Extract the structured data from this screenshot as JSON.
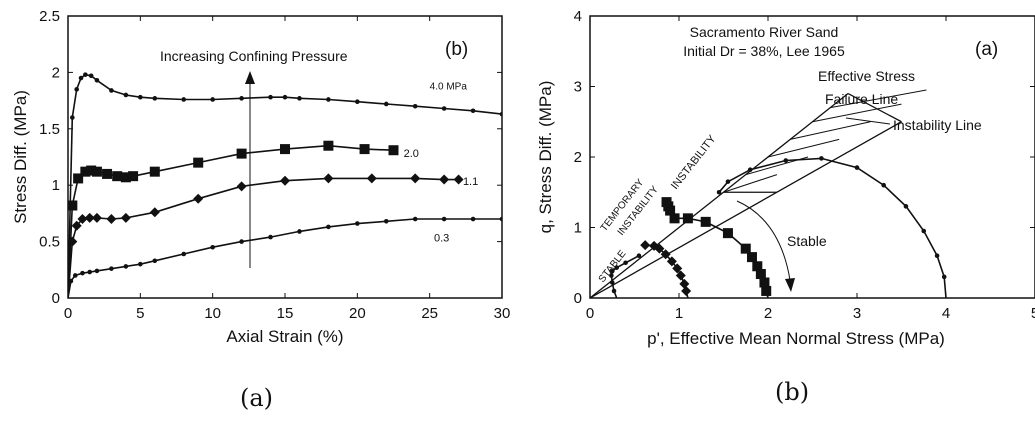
{
  "chart_data": [
    {
      "type": "line",
      "panel_label": "(b)",
      "caption": "(a)",
      "xlabel": "Axial Strain (%)",
      "ylabel": "Stress Diff. (MPa)",
      "annotation": "Increasing Confining Pressure",
      "xlim": [
        0,
        30
      ],
      "ylim": [
        0,
        2.5
      ],
      "xticks": [
        "0",
        "5",
        "10",
        "15",
        "20",
        "25",
        "30"
      ],
      "yticks": [
        "0",
        "0.5",
        "1",
        "1.5",
        "2",
        "2.5"
      ],
      "series": [
        {
          "name": "4.0 MPa",
          "marker": "dot",
          "x": [
            0,
            0.3,
            0.6,
            0.9,
            1.2,
            1.6,
            2,
            3,
            4,
            5,
            6,
            8,
            10,
            12,
            14,
            15,
            16,
            18,
            20,
            22,
            24,
            26,
            28,
            30
          ],
          "y": [
            0,
            1.6,
            1.85,
            1.95,
            1.98,
            1.97,
            1.93,
            1.84,
            1.8,
            1.78,
            1.77,
            1.76,
            1.76,
            1.77,
            1.78,
            1.78,
            1.77,
            1.76,
            1.74,
            1.72,
            1.7,
            1.68,
            1.66,
            1.63
          ]
        },
        {
          "name": "2.0",
          "marker": "square",
          "x": [
            0,
            0.3,
            0.7,
            1.2,
            1.6,
            2,
            2.7,
            3.4,
            4,
            4.5,
            6,
            9,
            12,
            15,
            18,
            20.5,
            22.5
          ],
          "y": [
            0,
            0.82,
            1.06,
            1.12,
            1.13,
            1.12,
            1.1,
            1.08,
            1.07,
            1.08,
            1.12,
            1.2,
            1.28,
            1.32,
            1.35,
            1.32,
            1.31
          ]
        },
        {
          "name": "1.1",
          "marker": "diamond",
          "x": [
            0,
            0.3,
            0.6,
            1,
            1.5,
            2,
            3,
            4,
            6,
            9,
            12,
            15,
            18,
            21,
            24,
            26,
            27
          ],
          "y": [
            0,
            0.5,
            0.64,
            0.7,
            0.71,
            0.71,
            0.7,
            0.71,
            0.76,
            0.88,
            0.99,
            1.04,
            1.06,
            1.06,
            1.06,
            1.05,
            1.05
          ]
        },
        {
          "name": "0.3",
          "marker": "dot",
          "x": [
            0,
            0.2,
            0.5,
            1,
            1.5,
            2,
            3,
            4,
            5,
            6,
            8,
            10,
            12,
            14,
            16,
            18,
            20,
            22,
            24,
            26,
            28,
            30
          ],
          "y": [
            0,
            0.15,
            0.2,
            0.22,
            0.23,
            0.24,
            0.26,
            0.28,
            0.3,
            0.33,
            0.39,
            0.45,
            0.5,
            0.54,
            0.59,
            0.63,
            0.66,
            0.68,
            0.7,
            0.7,
            0.7,
            0.7
          ]
        }
      ]
    },
    {
      "type": "line",
      "panel_label": "(a)",
      "caption": "(b)",
      "title": "Sacramento River Sand",
      "subtitle": "Initial Dr = 38%, Lee 1965",
      "xlabel": "p', Effective Mean Normal Stress (MPa)",
      "ylabel": "q, Stress Diff. (MPa)",
      "xlim": [
        0,
        5
      ],
      "ylim": [
        0,
        4
      ],
      "xticks": [
        "0",
        "1",
        "2",
        "3",
        "4",
        "5"
      ],
      "yticks": [
        "0",
        "1",
        "2",
        "3",
        "4"
      ],
      "lines": [
        {
          "name": "Effective Stress Failure Line",
          "label_lines": [
            "Effective Stress",
            "Failure Line"
          ],
          "x": [
            0,
            2.9
          ],
          "y": [
            0,
            2.9
          ]
        },
        {
          "name": "Instability Line",
          "label": "Instability Line",
          "x": [
            0,
            3.5
          ],
          "y": [
            0,
            2.5
          ]
        }
      ],
      "region_labels": [
        "STABLE",
        "TEMPORARY",
        "INSTABILITY",
        "INSTABILITY",
        "Stable"
      ],
      "stress_paths": [
        {
          "name": "0.3 MPa",
          "marker": "dot",
          "x": [
            0.3,
            0.27,
            0.25,
            0.24,
            0.25,
            0.3,
            0.4,
            0.55
          ],
          "y": [
            0,
            0.1,
            0.22,
            0.32,
            0.38,
            0.43,
            0.5,
            0.6
          ]
        },
        {
          "name": "1.1 MPa",
          "marker": "diamond",
          "x": [
            1.1,
            1.08,
            1.06,
            1.02,
            0.98,
            0.92,
            0.85,
            0.78,
            0.72,
            0.62
          ],
          "y": [
            0,
            0.1,
            0.2,
            0.32,
            0.42,
            0.52,
            0.62,
            0.7,
            0.74,
            0.75
          ]
        },
        {
          "name": "2.0 MPa",
          "marker": "square",
          "x": [
            2.0,
            1.98,
            1.96,
            1.92,
            1.88,
            1.82,
            1.75,
            1.55,
            1.3,
            1.1,
            0.95,
            0.9,
            0.88,
            0.86
          ],
          "y": [
            0,
            0.1,
            0.22,
            0.34,
            0.45,
            0.58,
            0.7,
            0.92,
            1.08,
            1.13,
            1.13,
            1.24,
            1.3,
            1.36
          ]
        },
        {
          "name": "4.0 MPa",
          "marker": "dot",
          "x": [
            4.0,
            3.98,
            3.9,
            3.75,
            3.55,
            3.3,
            3.0,
            2.6,
            2.2,
            1.8,
            1.55,
            1.45
          ],
          "y": [
            0,
            0.3,
            0.6,
            0.95,
            1.3,
            1.6,
            1.85,
            1.98,
            1.95,
            1.82,
            1.65,
            1.5
          ]
        }
      ]
    }
  ]
}
